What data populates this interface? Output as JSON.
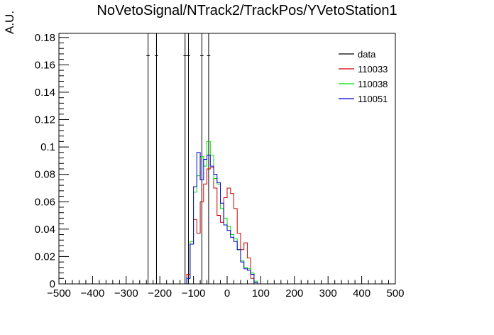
{
  "chart_data": {
    "type": "histogram",
    "title": "NoVetoSignal/NTrack2/TrackPos/YVetoStation1",
    "xlabel": "",
    "ylabel": "A.U.",
    "xlim": [
      -500,
      500
    ],
    "ylim": [
      0,
      0.183
    ],
    "bin_width": 10,
    "x_ticks": [
      -500,
      -400,
      -300,
      -200,
      -100,
      0,
      100,
      200,
      300,
      400,
      500
    ],
    "x_tick_labels": [
      "−500",
      "−400",
      "−300",
      "−200",
      "−100",
      "0",
      "100",
      "200",
      "300",
      "400",
      "500"
    ],
    "y_ticks": [
      0,
      0.02,
      0.04,
      0.06,
      0.08,
      0.1,
      0.12,
      0.14,
      0.16,
      0.18
    ],
    "y_tick_labels": [
      "0",
      "0.02",
      "0.04",
      "0.06",
      "0.08",
      "0.1",
      "0.12",
      "0.14",
      "0.16",
      "0.18"
    ],
    "legend_position": "top-right",
    "series": [
      {
        "name": "data",
        "color": "#000000",
        "style": "points",
        "x": [
          -235,
          -210,
          -125,
          -115,
          -75,
          -55
        ],
        "values": [
          0.1667,
          0.1667,
          0.1667,
          0.1667,
          0.1667,
          0.1667
        ]
      },
      {
        "name": "110033",
        "color": "#cc0000",
        "style": "step",
        "bin_start": -120,
        "values": [
          0.007,
          0.029,
          0.047,
          0.037,
          0.06,
          0.073,
          0.084,
          0.085,
          0.07,
          0.05,
          0.045,
          0.063,
          0.07,
          0.066,
          0.055,
          0.037,
          0.025,
          0.03,
          0.019,
          0.004,
          0.001
        ]
      },
      {
        "name": "110038",
        "color": "#00dd00",
        "style": "step",
        "bin_start": -120,
        "values": [
          0.004,
          0.031,
          0.067,
          0.079,
          0.093,
          0.086,
          0.104,
          0.094,
          0.077,
          0.073,
          0.055,
          0.048,
          0.042,
          0.036,
          0.033,
          0.025,
          0.017,
          0.012,
          0.011,
          0.008,
          0.002
        ]
      },
      {
        "name": "110051",
        "color": "#0000cc",
        "style": "step",
        "bin_start": -120,
        "values": [
          0.004,
          0.029,
          0.071,
          0.096,
          0.076,
          0.091,
          0.094,
          0.086,
          0.08,
          0.074,
          0.059,
          0.043,
          0.039,
          0.034,
          0.031,
          0.025,
          0.016,
          0.011,
          0.01,
          0.007,
          0.001
        ]
      }
    ]
  }
}
